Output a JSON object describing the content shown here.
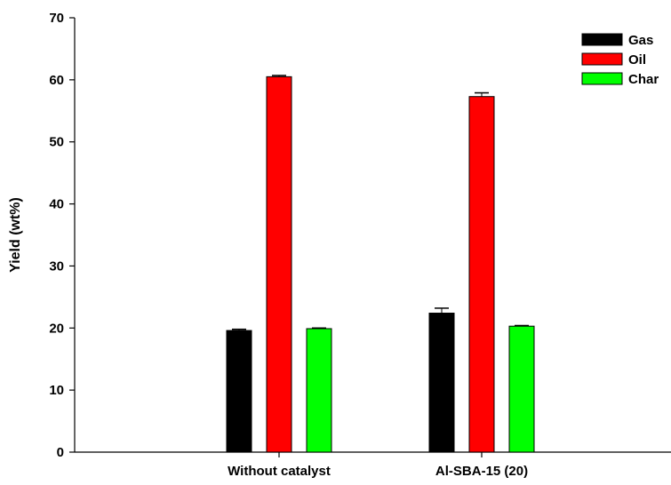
{
  "chart_data": {
    "type": "bar",
    "title": "",
    "xlabel": "",
    "ylabel": "Yield (wt%)",
    "ylim": [
      0,
      70
    ],
    "yticks": [
      0,
      10,
      20,
      30,
      40,
      50,
      60,
      70
    ],
    "categories": [
      "Without catalyst",
      "Al-SBA-15 (20)"
    ],
    "series": [
      {
        "name": "Gas",
        "color": "#000000",
        "values": [
          19.6,
          22.4
        ],
        "errors": [
          0.2,
          0.8
        ]
      },
      {
        "name": "Oil",
        "color": "#ff0000",
        "values": [
          60.5,
          57.3
        ],
        "errors": [
          0.2,
          0.6
        ]
      },
      {
        "name": "Char",
        "color": "#00ff00",
        "values": [
          19.9,
          20.3
        ],
        "errors": [
          0.1,
          0.1
        ]
      }
    ],
    "legend_position": "top-right",
    "error_bars": true,
    "grid": false
  }
}
